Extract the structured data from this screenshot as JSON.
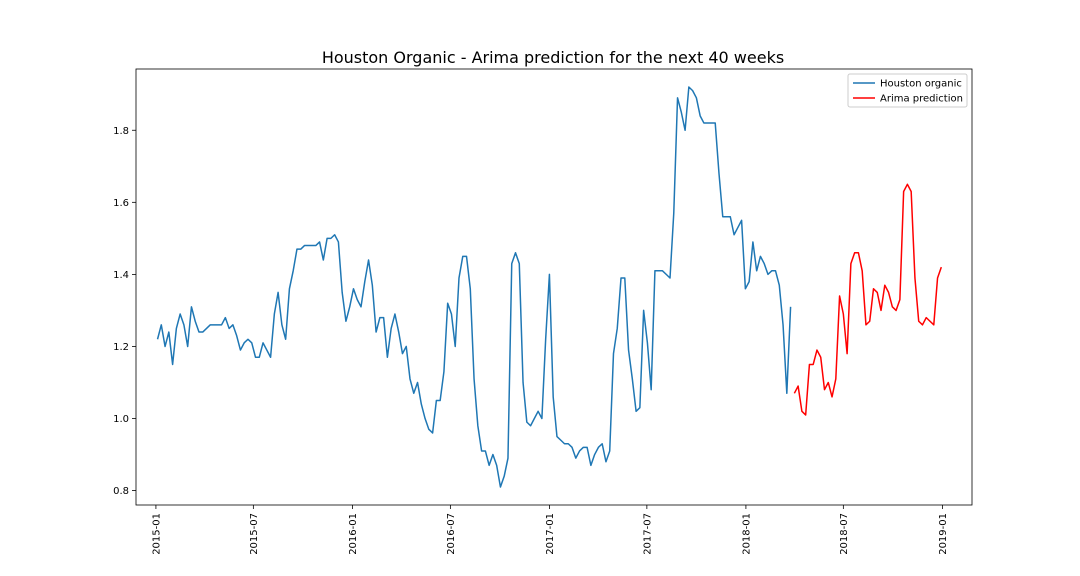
{
  "chart_data": {
    "type": "line",
    "title": "Houston Organic - Arima prediction for the next 40 weeks",
    "xlabel": "",
    "ylabel": "",
    "xlim": [
      "2014-11-25",
      "2019-02-25"
    ],
    "ylim": [
      0.76,
      1.97
    ],
    "x_ticks": [
      "2015-01",
      "2015-07",
      "2016-01",
      "2016-07",
      "2017-01",
      "2017-07",
      "2018-01",
      "2018-07",
      "2019-01"
    ],
    "y_ticks": [
      "0.8",
      "1.0",
      "1.2",
      "1.4",
      "1.6",
      "1.8"
    ],
    "grid": false,
    "legend_position": "top-right",
    "series": [
      {
        "name": "Houston organic",
        "color": "#1f77b4",
        "points": [
          [
            "2015-01-04",
            1.22
          ],
          [
            "2015-01-11",
            1.26
          ],
          [
            "2015-01-18",
            1.2
          ],
          [
            "2015-01-25",
            1.24
          ],
          [
            "2015-02-01",
            1.15
          ],
          [
            "2015-02-08",
            1.25
          ],
          [
            "2015-02-15",
            1.29
          ],
          [
            "2015-02-22",
            1.26
          ],
          [
            "2015-03-01",
            1.2
          ],
          [
            "2015-03-08",
            1.31
          ],
          [
            "2015-03-15",
            1.27
          ],
          [
            "2015-03-22",
            1.24
          ],
          [
            "2015-03-29",
            1.24
          ],
          [
            "2015-04-05",
            1.25
          ],
          [
            "2015-04-12",
            1.26
          ],
          [
            "2015-04-19",
            1.26
          ],
          [
            "2015-04-26",
            1.26
          ],
          [
            "2015-05-03",
            1.26
          ],
          [
            "2015-05-10",
            1.28
          ],
          [
            "2015-05-17",
            1.25
          ],
          [
            "2015-05-24",
            1.26
          ],
          [
            "2015-05-31",
            1.23
          ],
          [
            "2015-06-07",
            1.19
          ],
          [
            "2015-06-14",
            1.21
          ],
          [
            "2015-06-21",
            1.22
          ],
          [
            "2015-06-28",
            1.21
          ],
          [
            "2015-07-05",
            1.17
          ],
          [
            "2015-07-12",
            1.17
          ],
          [
            "2015-07-19",
            1.21
          ],
          [
            "2015-07-26",
            1.19
          ],
          [
            "2015-08-02",
            1.17
          ],
          [
            "2015-08-09",
            1.29
          ],
          [
            "2015-08-16",
            1.35
          ],
          [
            "2015-08-23",
            1.26
          ],
          [
            "2015-08-30",
            1.22
          ],
          [
            "2015-09-06",
            1.36
          ],
          [
            "2015-09-13",
            1.41
          ],
          [
            "2015-09-20",
            1.47
          ],
          [
            "2015-09-27",
            1.47
          ],
          [
            "2015-10-04",
            1.48
          ],
          [
            "2015-10-11",
            1.48
          ],
          [
            "2015-10-18",
            1.48
          ],
          [
            "2015-10-25",
            1.48
          ],
          [
            "2015-11-01",
            1.49
          ],
          [
            "2015-11-08",
            1.44
          ],
          [
            "2015-11-15",
            1.5
          ],
          [
            "2015-11-22",
            1.5
          ],
          [
            "2015-11-29",
            1.51
          ],
          [
            "2015-12-06",
            1.49
          ],
          [
            "2015-12-13",
            1.35
          ],
          [
            "2015-12-20",
            1.27
          ],
          [
            "2015-12-27",
            1.31
          ],
          [
            "2016-01-03",
            1.36
          ],
          [
            "2016-01-10",
            1.33
          ],
          [
            "2016-01-17",
            1.31
          ],
          [
            "2016-01-24",
            1.38
          ],
          [
            "2016-01-31",
            1.44
          ],
          [
            "2016-02-07",
            1.37
          ],
          [
            "2016-02-14",
            1.24
          ],
          [
            "2016-02-21",
            1.28
          ],
          [
            "2016-02-28",
            1.28
          ],
          [
            "2016-03-06",
            1.17
          ],
          [
            "2016-03-13",
            1.25
          ],
          [
            "2016-03-20",
            1.29
          ],
          [
            "2016-03-27",
            1.24
          ],
          [
            "2016-04-03",
            1.18
          ],
          [
            "2016-04-10",
            1.2
          ],
          [
            "2016-04-17",
            1.11
          ],
          [
            "2016-04-24",
            1.07
          ],
          [
            "2016-05-01",
            1.1
          ],
          [
            "2016-05-08",
            1.04
          ],
          [
            "2016-05-15",
            1.0
          ],
          [
            "2016-05-22",
            0.97
          ],
          [
            "2016-05-29",
            0.96
          ],
          [
            "2016-06-05",
            1.05
          ],
          [
            "2016-06-12",
            1.05
          ],
          [
            "2016-06-19",
            1.13
          ],
          [
            "2016-06-26",
            1.32
          ],
          [
            "2016-07-03",
            1.29
          ],
          [
            "2016-07-10",
            1.2
          ],
          [
            "2016-07-17",
            1.39
          ],
          [
            "2016-07-24",
            1.45
          ],
          [
            "2016-07-31",
            1.45
          ],
          [
            "2016-08-07",
            1.36
          ],
          [
            "2016-08-14",
            1.11
          ],
          [
            "2016-08-21",
            0.98
          ],
          [
            "2016-08-28",
            0.91
          ],
          [
            "2016-09-04",
            0.91
          ],
          [
            "2016-09-11",
            0.87
          ],
          [
            "2016-09-18",
            0.9
          ],
          [
            "2016-09-25",
            0.87
          ],
          [
            "2016-10-02",
            0.81
          ],
          [
            "2016-10-09",
            0.84
          ],
          [
            "2016-10-16",
            0.89
          ],
          [
            "2016-10-23",
            1.43
          ],
          [
            "2016-10-30",
            1.46
          ],
          [
            "2016-11-06",
            1.43
          ],
          [
            "2016-11-13",
            1.1
          ],
          [
            "2016-11-20",
            0.99
          ],
          [
            "2016-11-27",
            0.98
          ],
          [
            "2016-12-04",
            1.0
          ],
          [
            "2016-12-11",
            1.02
          ],
          [
            "2016-12-18",
            1.0
          ],
          [
            "2016-12-25",
            1.22
          ],
          [
            "2017-01-01",
            1.4
          ],
          [
            "2017-01-08",
            1.06
          ],
          [
            "2017-01-15",
            0.95
          ],
          [
            "2017-01-22",
            0.94
          ],
          [
            "2017-01-29",
            0.93
          ],
          [
            "2017-02-05",
            0.93
          ],
          [
            "2017-02-12",
            0.92
          ],
          [
            "2017-02-19",
            0.89
          ],
          [
            "2017-02-26",
            0.91
          ],
          [
            "2017-03-05",
            0.92
          ],
          [
            "2017-03-12",
            0.92
          ],
          [
            "2017-03-19",
            0.87
          ],
          [
            "2017-03-26",
            0.9
          ],
          [
            "2017-04-02",
            0.92
          ],
          [
            "2017-04-09",
            0.93
          ],
          [
            "2017-04-16",
            0.88
          ],
          [
            "2017-04-23",
            0.91
          ],
          [
            "2017-04-30",
            1.18
          ],
          [
            "2017-05-07",
            1.25
          ],
          [
            "2017-05-14",
            1.39
          ],
          [
            "2017-05-21",
            1.39
          ],
          [
            "2017-05-28",
            1.19
          ],
          [
            "2017-06-04",
            1.11
          ],
          [
            "2017-06-11",
            1.02
          ],
          [
            "2017-06-18",
            1.03
          ],
          [
            "2017-06-25",
            1.3
          ],
          [
            "2017-07-02",
            1.21
          ],
          [
            "2017-07-09",
            1.08
          ],
          [
            "2017-07-16",
            1.41
          ],
          [
            "2017-07-23",
            1.41
          ],
          [
            "2017-07-30",
            1.41
          ],
          [
            "2017-08-06",
            1.4
          ],
          [
            "2017-08-13",
            1.39
          ],
          [
            "2017-08-20",
            1.57
          ],
          [
            "2017-08-27",
            1.89
          ],
          [
            "2017-09-03",
            1.85
          ],
          [
            "2017-09-10",
            1.8
          ],
          [
            "2017-09-17",
            1.92
          ],
          [
            "2017-09-24",
            1.91
          ],
          [
            "2017-10-01",
            1.89
          ],
          [
            "2017-10-08",
            1.84
          ],
          [
            "2017-10-15",
            1.82
          ],
          [
            "2017-10-22",
            1.82
          ],
          [
            "2017-10-29",
            1.82
          ],
          [
            "2017-11-05",
            1.82
          ],
          [
            "2017-11-12",
            1.68
          ],
          [
            "2017-11-19",
            1.56
          ],
          [
            "2017-11-26",
            1.56
          ],
          [
            "2017-12-03",
            1.56
          ],
          [
            "2017-12-10",
            1.51
          ],
          [
            "2017-12-17",
            1.53
          ],
          [
            "2017-12-24",
            1.55
          ],
          [
            "2017-12-31",
            1.36
          ],
          [
            "2018-01-07",
            1.38
          ],
          [
            "2018-01-14",
            1.49
          ],
          [
            "2018-01-21",
            1.41
          ],
          [
            "2018-01-28",
            1.45
          ],
          [
            "2018-02-04",
            1.43
          ],
          [
            "2018-02-11",
            1.4
          ],
          [
            "2018-02-18",
            1.41
          ],
          [
            "2018-02-25",
            1.41
          ],
          [
            "2018-03-04",
            1.37
          ],
          [
            "2018-03-11",
            1.26
          ],
          [
            "2018-03-18",
            1.07
          ],
          [
            "2018-03-25",
            1.31
          ]
        ]
      },
      {
        "name": "Arima prediction",
        "color": "#ff0000",
        "points": [
          [
            "2018-04-01",
            1.07
          ],
          [
            "2018-04-08",
            1.09
          ],
          [
            "2018-04-15",
            1.02
          ],
          [
            "2018-04-22",
            1.01
          ],
          [
            "2018-04-29",
            1.15
          ],
          [
            "2018-05-06",
            1.15
          ],
          [
            "2018-05-13",
            1.19
          ],
          [
            "2018-05-20",
            1.17
          ],
          [
            "2018-05-27",
            1.08
          ],
          [
            "2018-06-03",
            1.1
          ],
          [
            "2018-06-10",
            1.06
          ],
          [
            "2018-06-17",
            1.11
          ],
          [
            "2018-06-24",
            1.34
          ],
          [
            "2018-07-01",
            1.29
          ],
          [
            "2018-07-08",
            1.18
          ],
          [
            "2018-07-15",
            1.43
          ],
          [
            "2018-07-22",
            1.46
          ],
          [
            "2018-07-29",
            1.46
          ],
          [
            "2018-08-05",
            1.41
          ],
          [
            "2018-08-12",
            1.26
          ],
          [
            "2018-08-19",
            1.27
          ],
          [
            "2018-08-26",
            1.36
          ],
          [
            "2018-09-02",
            1.35
          ],
          [
            "2018-09-09",
            1.3
          ],
          [
            "2018-09-16",
            1.37
          ],
          [
            "2018-09-23",
            1.35
          ],
          [
            "2018-09-30",
            1.31
          ],
          [
            "2018-10-07",
            1.3
          ],
          [
            "2018-10-14",
            1.33
          ],
          [
            "2018-10-21",
            1.63
          ],
          [
            "2018-10-28",
            1.65
          ],
          [
            "2018-11-04",
            1.63
          ],
          [
            "2018-11-11",
            1.39
          ],
          [
            "2018-11-18",
            1.27
          ],
          [
            "2018-11-25",
            1.26
          ],
          [
            "2018-12-02",
            1.28
          ],
          [
            "2018-12-09",
            1.27
          ],
          [
            "2018-12-16",
            1.26
          ],
          [
            "2018-12-23",
            1.39
          ],
          [
            "2018-12-30",
            1.42
          ]
        ]
      }
    ]
  }
}
